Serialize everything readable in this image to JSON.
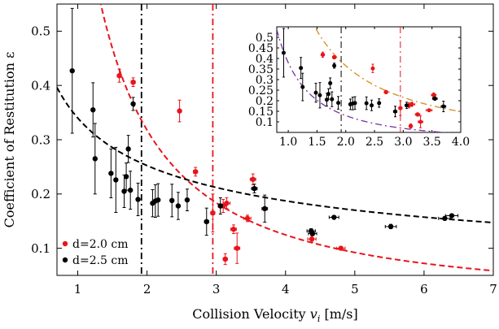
{
  "chart_data": [
    {
      "id": "main",
      "type": "scatter",
      "xlabel": "Collision Velocity v_i [m/s]",
      "xlabel_main": "Collision Velocity ",
      "xlabel_var": "v",
      "xlabel_sub": "i",
      "xlabel_unit": " [m/s]",
      "ylabel": "Coefficient of Restitution ε",
      "xlim": [
        0.7,
        7.0
      ],
      "ylim": [
        0.05,
        0.55
      ],
      "xticks": [
        1,
        2,
        3,
        4,
        5,
        6,
        7
      ],
      "yticks": [
        0.1,
        0.2,
        0.3,
        0.4,
        0.5
      ],
      "ytick_labels": [
        "0.1",
        "0.2",
        "0.3",
        "0.4",
        "0.5"
      ],
      "colors": {
        "red": "#e8141c",
        "black": "#000000"
      },
      "legend": {
        "position": "bottom-left",
        "entries": [
          {
            "label": "d=2.0 cm",
            "color": "#e8141c"
          },
          {
            "label": "d=2.5 cm",
            "color": "#000000"
          }
        ]
      },
      "vlines": [
        {
          "x": 1.92,
          "color": "#000000",
          "style": "dash-dot"
        },
        {
          "x": 2.95,
          "color": "#e8141c",
          "style": "dash-dot"
        }
      ],
      "fit_curves": [
        {
          "color": "#e8141c",
          "form": "a*x^b",
          "a": 0.81,
          "b": -1.35,
          "style": "dashed"
        },
        {
          "color": "#000000",
          "form": "a*x^b",
          "a": 0.34,
          "b": -0.43,
          "style": "dashed"
        }
      ],
      "series": [
        {
          "color": "#e8141c",
          "points": [
            {
              "x": 1.6,
              "y": 0.418,
              "yerr": 0.012,
              "xerr": 0.03
            },
            {
              "x": 1.8,
              "y": 0.406,
              "yerr": 0.008,
              "xerr": 0.03
            },
            {
              "x": 2.47,
              "y": 0.353,
              "yerr": 0.02,
              "xerr": 0.02
            },
            {
              "x": 2.7,
              "y": 0.241,
              "yerr": 0.008,
              "xerr": 0.03
            },
            {
              "x": 2.95,
              "y": 0.165,
              "yerr": 0.035,
              "xerr": 0.03
            },
            {
              "x": 3.1,
              "y": 0.178,
              "yerr": 0.012,
              "xerr": 0.05
            },
            {
              "x": 3.13,
              "y": 0.08,
              "yerr": 0.01,
              "xerr": 0.03
            },
            {
              "x": 3.15,
              "y": 0.183,
              "yerr": 0.01,
              "xerr": 0.05
            },
            {
              "x": 3.25,
              "y": 0.135,
              "yerr": 0.008,
              "xerr": 0.04
            },
            {
              "x": 3.3,
              "y": 0.1,
              "yerr": 0.028,
              "xerr": 0.04
            },
            {
              "x": 3.45,
              "y": 0.155,
              "yerr": 0.006,
              "xerr": 0.05
            },
            {
              "x": 3.53,
              "y": 0.227,
              "yerr": 0.01,
              "xerr": 0.04
            },
            {
              "x": 4.38,
              "y": 0.117,
              "yerr": 0.006,
              "xerr": 0.06
            },
            {
              "x": 4.8,
              "y": 0.1,
              "yerr": 0.003,
              "xerr": 0.06
            }
          ]
        },
        {
          "color": "#000000",
          "points": [
            {
              "x": 0.92,
              "y": 0.427,
              "yerr": 0.115,
              "xerr": 0.02
            },
            {
              "x": 1.22,
              "y": 0.355,
              "yerr": 0.05,
              "xerr": 0.02
            },
            {
              "x": 1.25,
              "y": 0.265,
              "yerr": 0.065,
              "xerr": 0.02
            },
            {
              "x": 1.48,
              "y": 0.238,
              "yerr": 0.045,
              "xerr": 0.02
            },
            {
              "x": 1.55,
              "y": 0.226,
              "yerr": 0.06,
              "xerr": 0.02
            },
            {
              "x": 1.67,
              "y": 0.205,
              "yerr": 0.03,
              "xerr": 0.02
            },
            {
              "x": 1.7,
              "y": 0.232,
              "yerr": 0.025,
              "xerr": 0.02
            },
            {
              "x": 1.73,
              "y": 0.283,
              "yerr": 0.025,
              "xerr": 0.02
            },
            {
              "x": 1.76,
              "y": 0.207,
              "yerr": 0.035,
              "xerr": 0.02
            },
            {
              "x": 1.8,
              "y": 0.366,
              "yerr": 0.012,
              "xerr": 0.02
            },
            {
              "x": 1.87,
              "y": 0.19,
              "yerr": 0.03,
              "xerr": 0.02
            },
            {
              "x": 2.08,
              "y": 0.183,
              "yerr": 0.025,
              "xerr": 0.02
            },
            {
              "x": 2.12,
              "y": 0.187,
              "yerr": 0.03,
              "xerr": 0.02
            },
            {
              "x": 2.16,
              "y": 0.189,
              "yerr": 0.03,
              "xerr": 0.02
            },
            {
              "x": 2.36,
              "y": 0.188,
              "yerr": 0.03,
              "xerr": 0.02
            },
            {
              "x": 2.45,
              "y": 0.178,
              "yerr": 0.025,
              "xerr": 0.02
            },
            {
              "x": 2.58,
              "y": 0.189,
              "yerr": 0.02,
              "xerr": 0.02
            },
            {
              "x": 2.86,
              "y": 0.149,
              "yerr": 0.025,
              "xerr": 0.03
            },
            {
              "x": 3.06,
              "y": 0.178,
              "yerr": 0.015,
              "xerr": 0.03
            },
            {
              "x": 3.55,
              "y": 0.21,
              "yerr": 0.008,
              "xerr": 0.04
            },
            {
              "x": 3.7,
              "y": 0.173,
              "yerr": 0.025,
              "xerr": 0.04
            },
            {
              "x": 4.37,
              "y": 0.132,
              "yerr": 0.004,
              "xerr": 0.06
            },
            {
              "x": 4.39,
              "y": 0.127,
              "yerr": 0.003,
              "xerr": 0.06
            },
            {
              "x": 4.7,
              "y": 0.157,
              "yerr": 0.003,
              "xerr": 0.07
            },
            {
              "x": 5.52,
              "y": 0.14,
              "yerr": 0.004,
              "xerr": 0.08
            },
            {
              "x": 6.3,
              "y": 0.155,
              "yerr": 0.003,
              "xerr": 0.09
            },
            {
              "x": 6.4,
              "y": 0.16,
              "yerr": 0.003,
              "xerr": 0.09
            }
          ]
        }
      ]
    },
    {
      "id": "inset",
      "type": "scatter",
      "xlim": [
        0.8,
        4.0
      ],
      "ylim": [
        0.05,
        0.55
      ],
      "xticks": [
        1.0,
        1.5,
        2.0,
        2.5,
        3.0,
        3.5,
        4.0
      ],
      "xtick_labels": [
        "1.0",
        "1.5",
        "2.0",
        "2.5",
        "3.0",
        "3.5",
        "4.0"
      ],
      "yticks": [
        0.1,
        0.15,
        0.2,
        0.25,
        0.3,
        0.35,
        0.4,
        0.45,
        0.5
      ],
      "ytick_labels": [
        "0.1",
        "0.15",
        "0.2",
        "0.25",
        "0.3",
        "0.35",
        "0.4",
        "0.45",
        "0.5"
      ],
      "colors": {
        "red": "#e8141c",
        "black": "#000000",
        "orange": "#d98a1a",
        "purple": "#7b2fa0"
      },
      "vlines": [
        {
          "x": 1.92,
          "color": "#000000",
          "style": "dash-dot"
        },
        {
          "x": 2.95,
          "color": "#e8141c",
          "style": "dash-dot"
        }
      ],
      "fit_curves": [
        {
          "color": "#d98a1a",
          "form": "a*x^b",
          "a": 0.9,
          "b": -1.3,
          "style": "dash-dot"
        },
        {
          "color": "#7b2fa0",
          "form": "a*x^b",
          "a": 0.38,
          "b": -1.55,
          "style": "dash-dot"
        }
      ],
      "series": [
        {
          "color": "#e8141c",
          "points": [
            {
              "x": 1.6,
              "y": 0.418,
              "yerr": 0.012,
              "xerr": 0.03
            },
            {
              "x": 1.8,
              "y": 0.406,
              "yerr": 0.008,
              "xerr": 0.03
            },
            {
              "x": 2.47,
              "y": 0.353,
              "yerr": 0.02,
              "xerr": 0.02
            },
            {
              "x": 2.7,
              "y": 0.241,
              "yerr": 0.008,
              "xerr": 0.03
            },
            {
              "x": 2.95,
              "y": 0.165,
              "yerr": 0.035,
              "xerr": 0.03
            },
            {
              "x": 3.1,
              "y": 0.178,
              "yerr": 0.012,
              "xerr": 0.05
            },
            {
              "x": 3.13,
              "y": 0.08,
              "yerr": 0.01,
              "xerr": 0.03
            },
            {
              "x": 3.15,
              "y": 0.183,
              "yerr": 0.01,
              "xerr": 0.05
            },
            {
              "x": 3.25,
              "y": 0.135,
              "yerr": 0.008,
              "xerr": 0.04
            },
            {
              "x": 3.3,
              "y": 0.1,
              "yerr": 0.028,
              "xerr": 0.04
            },
            {
              "x": 3.45,
              "y": 0.155,
              "yerr": 0.006,
              "xerr": 0.05
            },
            {
              "x": 3.53,
              "y": 0.227,
              "yerr": 0.01,
              "xerr": 0.04
            }
          ]
        },
        {
          "color": "#000000",
          "points": [
            {
              "x": 0.92,
              "y": 0.427,
              "yerr": 0.115,
              "xerr": 0.02
            },
            {
              "x": 1.22,
              "y": 0.355,
              "yerr": 0.05,
              "xerr": 0.02
            },
            {
              "x": 1.25,
              "y": 0.265,
              "yerr": 0.065,
              "xerr": 0.02
            },
            {
              "x": 1.48,
              "y": 0.238,
              "yerr": 0.045,
              "xerr": 0.02
            },
            {
              "x": 1.55,
              "y": 0.226,
              "yerr": 0.06,
              "xerr": 0.02
            },
            {
              "x": 1.67,
              "y": 0.205,
              "yerr": 0.03,
              "xerr": 0.02
            },
            {
              "x": 1.7,
              "y": 0.232,
              "yerr": 0.025,
              "xerr": 0.02
            },
            {
              "x": 1.73,
              "y": 0.283,
              "yerr": 0.025,
              "xerr": 0.02
            },
            {
              "x": 1.76,
              "y": 0.207,
              "yerr": 0.035,
              "xerr": 0.02
            },
            {
              "x": 1.8,
              "y": 0.366,
              "yerr": 0.012,
              "xerr": 0.02
            },
            {
              "x": 1.87,
              "y": 0.19,
              "yerr": 0.03,
              "xerr": 0.02
            },
            {
              "x": 2.08,
              "y": 0.183,
              "yerr": 0.025,
              "xerr": 0.02
            },
            {
              "x": 2.12,
              "y": 0.187,
              "yerr": 0.03,
              "xerr": 0.02
            },
            {
              "x": 2.16,
              "y": 0.189,
              "yerr": 0.03,
              "xerr": 0.02
            },
            {
              "x": 2.36,
              "y": 0.188,
              "yerr": 0.03,
              "xerr": 0.02
            },
            {
              "x": 2.45,
              "y": 0.178,
              "yerr": 0.025,
              "xerr": 0.02
            },
            {
              "x": 2.58,
              "y": 0.189,
              "yerr": 0.02,
              "xerr": 0.02
            },
            {
              "x": 2.86,
              "y": 0.149,
              "yerr": 0.025,
              "xerr": 0.03
            },
            {
              "x": 3.06,
              "y": 0.178,
              "yerr": 0.015,
              "xerr": 0.03
            },
            {
              "x": 3.55,
              "y": 0.21,
              "yerr": 0.008,
              "xerr": 0.04
            },
            {
              "x": 3.7,
              "y": 0.173,
              "yerr": 0.025,
              "xerr": 0.04
            }
          ]
        }
      ]
    }
  ]
}
